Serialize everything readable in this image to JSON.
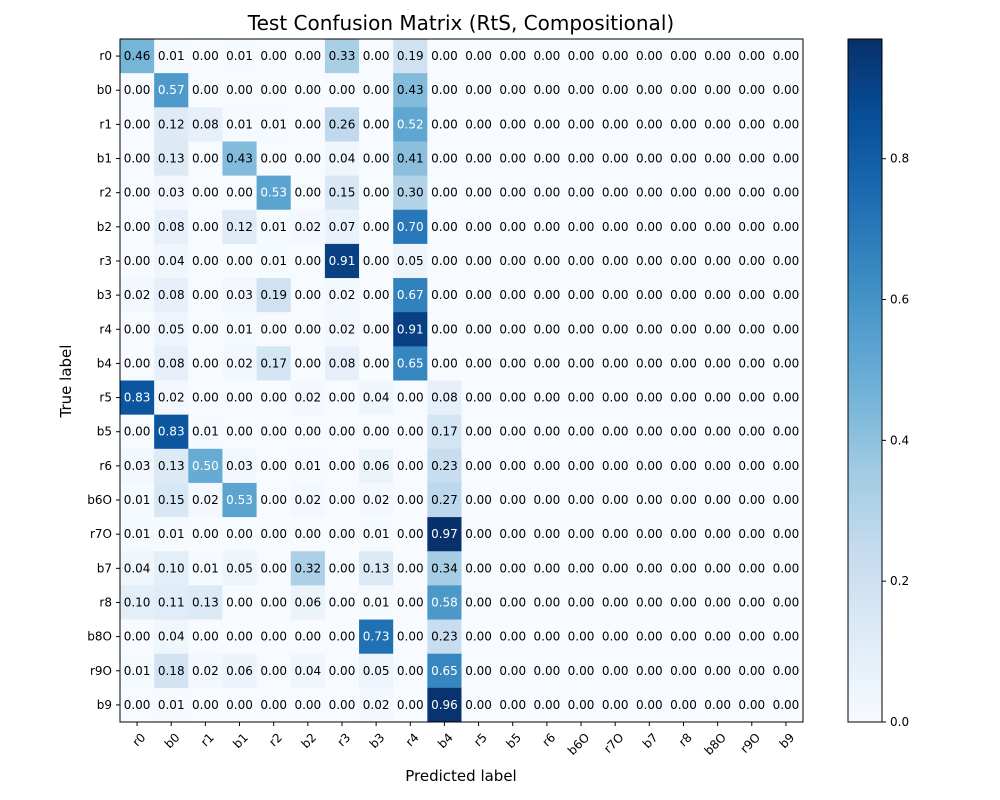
{
  "chart_data": {
    "type": "heatmap",
    "title": "Test Confusion Matrix (RtS, Compositional)",
    "xlabel": "Predicted label",
    "ylabel": "True label",
    "x_categories": [
      "r0",
      "b0",
      "r1",
      "b1",
      "r2",
      "b2",
      "r3",
      "b3",
      "r4",
      "b4",
      "r5",
      "b5",
      "r6",
      "b6O",
      "r7O",
      "b7",
      "r8",
      "b8O",
      "r9O",
      "b9"
    ],
    "y_categories": [
      "r0",
      "b0",
      "r1",
      "b1",
      "r2",
      "b2",
      "r3",
      "b3",
      "r4",
      "b4",
      "r5",
      "b5",
      "r6",
      "b6O",
      "r7O",
      "b7",
      "r8",
      "b8O",
      "r9O",
      "b9"
    ],
    "values": [
      [
        0.46,
        0.01,
        0.0,
        0.01,
        0.0,
        0.0,
        0.33,
        0.0,
        0.19,
        0.0,
        0.0,
        0.0,
        0.0,
        0.0,
        0.0,
        0.0,
        0.0,
        0.0,
        0.0,
        0.0
      ],
      [
        0.0,
        0.57,
        0.0,
        0.0,
        0.0,
        0.0,
        0.0,
        0.0,
        0.43,
        0.0,
        0.0,
        0.0,
        0.0,
        0.0,
        0.0,
        0.0,
        0.0,
        0.0,
        0.0,
        0.0
      ],
      [
        0.0,
        0.12,
        0.08,
        0.01,
        0.01,
        0.0,
        0.26,
        0.0,
        0.52,
        0.0,
        0.0,
        0.0,
        0.0,
        0.0,
        0.0,
        0.0,
        0.0,
        0.0,
        0.0,
        0.0
      ],
      [
        0.0,
        0.13,
        0.0,
        0.43,
        0.0,
        0.0,
        0.04,
        0.0,
        0.41,
        0.0,
        0.0,
        0.0,
        0.0,
        0.0,
        0.0,
        0.0,
        0.0,
        0.0,
        0.0,
        0.0
      ],
      [
        0.0,
        0.03,
        0.0,
        0.0,
        0.53,
        0.0,
        0.15,
        0.0,
        0.3,
        0.0,
        0.0,
        0.0,
        0.0,
        0.0,
        0.0,
        0.0,
        0.0,
        0.0,
        0.0,
        0.0
      ],
      [
        0.0,
        0.08,
        0.0,
        0.12,
        0.01,
        0.02,
        0.07,
        0.0,
        0.7,
        0.0,
        0.0,
        0.0,
        0.0,
        0.0,
        0.0,
        0.0,
        0.0,
        0.0,
        0.0,
        0.0
      ],
      [
        0.0,
        0.04,
        0.0,
        0.0,
        0.01,
        0.0,
        0.91,
        0.0,
        0.05,
        0.0,
        0.0,
        0.0,
        0.0,
        0.0,
        0.0,
        0.0,
        0.0,
        0.0,
        0.0,
        0.0
      ],
      [
        0.02,
        0.08,
        0.0,
        0.03,
        0.19,
        0.0,
        0.02,
        0.0,
        0.67,
        0.0,
        0.0,
        0.0,
        0.0,
        0.0,
        0.0,
        0.0,
        0.0,
        0.0,
        0.0,
        0.0
      ],
      [
        0.0,
        0.05,
        0.0,
        0.01,
        0.0,
        0.0,
        0.02,
        0.0,
        0.91,
        0.0,
        0.0,
        0.0,
        0.0,
        0.0,
        0.0,
        0.0,
        0.0,
        0.0,
        0.0,
        0.0
      ],
      [
        0.0,
        0.08,
        0.0,
        0.02,
        0.17,
        0.0,
        0.08,
        0.0,
        0.65,
        0.0,
        0.0,
        0.0,
        0.0,
        0.0,
        0.0,
        0.0,
        0.0,
        0.0,
        0.0,
        0.0
      ],
      [
        0.83,
        0.02,
        0.0,
        0.0,
        0.0,
        0.02,
        0.0,
        0.04,
        0.0,
        0.08,
        0.0,
        0.0,
        0.0,
        0.0,
        0.0,
        0.0,
        0.0,
        0.0,
        0.0,
        0.0
      ],
      [
        0.0,
        0.83,
        0.01,
        0.0,
        0.0,
        0.0,
        0.0,
        0.0,
        0.0,
        0.17,
        0.0,
        0.0,
        0.0,
        0.0,
        0.0,
        0.0,
        0.0,
        0.0,
        0.0,
        0.0
      ],
      [
        0.03,
        0.13,
        0.5,
        0.03,
        0.0,
        0.01,
        0.0,
        0.06,
        0.0,
        0.23,
        0.0,
        0.0,
        0.0,
        0.0,
        0.0,
        0.0,
        0.0,
        0.0,
        0.0,
        0.0
      ],
      [
        0.01,
        0.15,
        0.02,
        0.53,
        0.0,
        0.02,
        0.0,
        0.02,
        0.0,
        0.27,
        0.0,
        0.0,
        0.0,
        0.0,
        0.0,
        0.0,
        0.0,
        0.0,
        0.0,
        0.0
      ],
      [
        0.01,
        0.01,
        0.0,
        0.0,
        0.0,
        0.0,
        0.0,
        0.01,
        0.0,
        0.97,
        0.0,
        0.0,
        0.0,
        0.0,
        0.0,
        0.0,
        0.0,
        0.0,
        0.0,
        0.0
      ],
      [
        0.04,
        0.1,
        0.01,
        0.05,
        0.0,
        0.32,
        0.0,
        0.13,
        0.0,
        0.34,
        0.0,
        0.0,
        0.0,
        0.0,
        0.0,
        0.0,
        0.0,
        0.0,
        0.0,
        0.0
      ],
      [
        0.1,
        0.11,
        0.13,
        0.0,
        0.0,
        0.06,
        0.0,
        0.01,
        0.0,
        0.58,
        0.0,
        0.0,
        0.0,
        0.0,
        0.0,
        0.0,
        0.0,
        0.0,
        0.0,
        0.0
      ],
      [
        0.0,
        0.04,
        0.0,
        0.0,
        0.0,
        0.0,
        0.0,
        0.73,
        0.0,
        0.23,
        0.0,
        0.0,
        0.0,
        0.0,
        0.0,
        0.0,
        0.0,
        0.0,
        0.0,
        0.0
      ],
      [
        0.01,
        0.18,
        0.02,
        0.06,
        0.0,
        0.04,
        0.0,
        0.05,
        0.0,
        0.65,
        0.0,
        0.0,
        0.0,
        0.0,
        0.0,
        0.0,
        0.0,
        0.0,
        0.0,
        0.0
      ],
      [
        0.0,
        0.01,
        0.0,
        0.0,
        0.0,
        0.0,
        0.0,
        0.02,
        0.0,
        0.96,
        0.0,
        0.0,
        0.0,
        0.0,
        0.0,
        0.0,
        0.0,
        0.0,
        0.0,
        0.0
      ]
    ],
    "value_format": "2 decimals",
    "colormap": "Blues",
    "color_range": [
      0.0,
      0.97
    ],
    "colorbar_ticks": [
      0.0,
      0.2,
      0.4,
      0.6,
      0.8
    ],
    "colorbar_labels": [
      "0.0",
      "0.2",
      "0.4",
      "0.6",
      "0.8"
    ],
    "grid": false,
    "legend": "colorbar-right"
  }
}
